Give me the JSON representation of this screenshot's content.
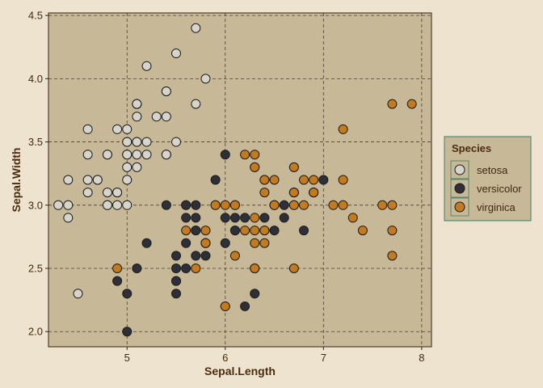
{
  "chart_data": {
    "type": "scatter",
    "xlabel": "Sepal.Length",
    "ylabel": "Sepal.Width",
    "xlim": [
      4.2,
      8.1
    ],
    "ylim": [
      1.88,
      4.52
    ],
    "x_ticks": [
      5,
      6,
      7,
      8
    ],
    "y_ticks": [
      2.0,
      2.5,
      3.0,
      3.5,
      4.0,
      4.5
    ],
    "x_tick_labels": [
      "5",
      "6",
      "7",
      "8"
    ],
    "y_tick_labels": [
      "2.0",
      "2.5",
      "3.0",
      "3.5",
      "4.0",
      "4.5"
    ],
    "grid": true,
    "legend": {
      "title": "Species",
      "position": "right"
    },
    "colors": {
      "background": "#ede3cf",
      "panel": "#c7b897",
      "grid": "#4a4030",
      "axis": "#2d2416"
    },
    "series": [
      {
        "name": "setosa",
        "color": "#d7d4cb",
        "points": [
          [
            5.1,
            3.5
          ],
          [
            4.9,
            3.0
          ],
          [
            4.7,
            3.2
          ],
          [
            4.6,
            3.1
          ],
          [
            5.0,
            3.6
          ],
          [
            5.4,
            3.9
          ],
          [
            4.6,
            3.4
          ],
          [
            5.0,
            3.4
          ],
          [
            4.4,
            2.9
          ],
          [
            4.9,
            3.1
          ],
          [
            5.4,
            3.7
          ],
          [
            4.8,
            3.4
          ],
          [
            4.8,
            3.0
          ],
          [
            4.3,
            3.0
          ],
          [
            5.8,
            4.0
          ],
          [
            5.7,
            4.4
          ],
          [
            5.4,
            3.9
          ],
          [
            5.1,
            3.5
          ],
          [
            5.7,
            3.8
          ],
          [
            5.1,
            3.8
          ],
          [
            5.4,
            3.4
          ],
          [
            5.1,
            3.7
          ],
          [
            4.6,
            3.6
          ],
          [
            5.1,
            3.3
          ],
          [
            4.8,
            3.4
          ],
          [
            5.0,
            3.0
          ],
          [
            5.0,
            3.4
          ],
          [
            5.2,
            3.5
          ],
          [
            5.2,
            3.4
          ],
          [
            4.7,
            3.2
          ],
          [
            4.8,
            3.1
          ],
          [
            5.4,
            3.4
          ],
          [
            5.2,
            4.1
          ],
          [
            5.5,
            4.2
          ],
          [
            4.9,
            3.1
          ],
          [
            5.0,
            3.2
          ],
          [
            5.5,
            3.5
          ],
          [
            4.9,
            3.6
          ],
          [
            4.4,
            3.0
          ],
          [
            5.1,
            3.4
          ],
          [
            5.0,
            3.5
          ],
          [
            4.5,
            2.3
          ],
          [
            4.4,
            3.2
          ],
          [
            5.0,
            3.5
          ],
          [
            5.1,
            3.8
          ],
          [
            4.8,
            3.0
          ],
          [
            5.1,
            3.8
          ],
          [
            4.6,
            3.2
          ],
          [
            5.3,
            3.7
          ],
          [
            5.0,
            3.3
          ]
        ]
      },
      {
        "name": "versicolor",
        "color": "#2f2f37",
        "points": [
          [
            7.0,
            3.2
          ],
          [
            6.4,
            3.2
          ],
          [
            6.9,
            3.1
          ],
          [
            5.5,
            2.3
          ],
          [
            6.5,
            2.8
          ],
          [
            5.7,
            2.8
          ],
          [
            6.3,
            3.3
          ],
          [
            4.9,
            2.4
          ],
          [
            6.6,
            2.9
          ],
          [
            5.2,
            2.7
          ],
          [
            5.0,
            2.0
          ],
          [
            5.9,
            3.0
          ],
          [
            6.0,
            2.2
          ],
          [
            6.1,
            2.9
          ],
          [
            5.6,
            2.9
          ],
          [
            6.7,
            3.1
          ],
          [
            5.6,
            3.0
          ],
          [
            5.8,
            2.7
          ],
          [
            6.2,
            2.2
          ],
          [
            5.6,
            2.5
          ],
          [
            5.9,
            3.2
          ],
          [
            6.1,
            2.8
          ],
          [
            6.3,
            2.5
          ],
          [
            6.1,
            2.8
          ],
          [
            6.4,
            2.9
          ],
          [
            6.6,
            3.0
          ],
          [
            6.8,
            2.8
          ],
          [
            6.7,
            3.0
          ],
          [
            6.0,
            2.9
          ],
          [
            5.7,
            2.6
          ],
          [
            5.5,
            2.4
          ],
          [
            5.5,
            2.4
          ],
          [
            5.8,
            2.7
          ],
          [
            6.0,
            2.7
          ],
          [
            5.4,
            3.0
          ],
          [
            6.0,
            3.4
          ],
          [
            6.7,
            3.1
          ],
          [
            6.3,
            2.3
          ],
          [
            5.6,
            3.0
          ],
          [
            5.5,
            2.5
          ],
          [
            5.5,
            2.6
          ],
          [
            6.1,
            3.0
          ],
          [
            5.8,
            2.6
          ],
          [
            5.0,
            2.3
          ],
          [
            5.6,
            2.7
          ],
          [
            5.7,
            3.0
          ],
          [
            5.7,
            2.9
          ],
          [
            6.2,
            2.9
          ],
          [
            5.1,
            2.5
          ],
          [
            5.7,
            2.8
          ]
        ]
      },
      {
        "name": "virginica",
        "color": "#c47a1e",
        "points": [
          [
            6.3,
            3.3
          ],
          [
            5.8,
            2.7
          ],
          [
            7.1,
            3.0
          ],
          [
            6.3,
            2.9
          ],
          [
            6.5,
            3.0
          ],
          [
            7.6,
            3.0
          ],
          [
            4.9,
            2.5
          ],
          [
            7.3,
            2.9
          ],
          [
            6.7,
            2.5
          ],
          [
            7.2,
            3.6
          ],
          [
            6.5,
            3.2
          ],
          [
            6.4,
            2.7
          ],
          [
            6.8,
            3.0
          ],
          [
            5.7,
            2.5
          ],
          [
            5.8,
            2.8
          ],
          [
            6.4,
            3.2
          ],
          [
            6.5,
            3.0
          ],
          [
            7.7,
            3.8
          ],
          [
            7.7,
            2.6
          ],
          [
            6.0,
            2.2
          ],
          [
            6.9,
            3.2
          ],
          [
            5.6,
            2.8
          ],
          [
            7.7,
            2.8
          ],
          [
            6.3,
            2.7
          ],
          [
            6.7,
            3.3
          ],
          [
            7.2,
            3.2
          ],
          [
            6.2,
            2.8
          ],
          [
            6.1,
            3.0
          ],
          [
            6.4,
            2.8
          ],
          [
            7.2,
            3.0
          ],
          [
            7.4,
            2.8
          ],
          [
            7.9,
            3.8
          ],
          [
            6.4,
            2.8
          ],
          [
            6.3,
            2.8
          ],
          [
            6.1,
            2.6
          ],
          [
            7.7,
            3.0
          ],
          [
            6.3,
            3.4
          ],
          [
            6.4,
            3.1
          ],
          [
            6.0,
            3.0
          ],
          [
            6.9,
            3.1
          ],
          [
            6.7,
            3.1
          ],
          [
            6.9,
            3.1
          ],
          [
            5.8,
            2.7
          ],
          [
            6.8,
            3.2
          ],
          [
            6.7,
            3.3
          ],
          [
            6.7,
            3.0
          ],
          [
            6.3,
            2.5
          ],
          [
            6.5,
            3.0
          ],
          [
            6.2,
            3.4
          ],
          [
            5.9,
            3.0
          ]
        ]
      }
    ]
  }
}
